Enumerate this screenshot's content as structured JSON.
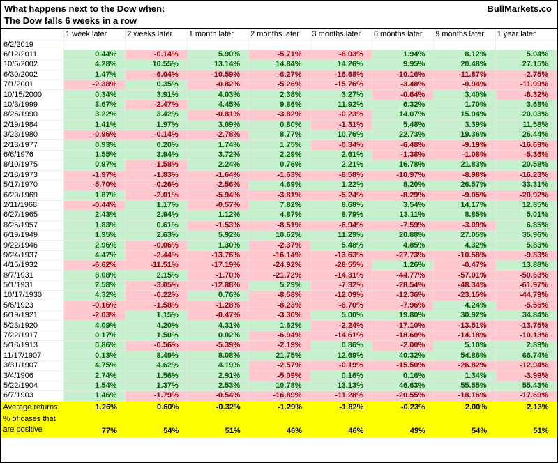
{
  "header": {
    "title_line1": "What happens next to the Dow when:",
    "title_line2": "The Dow falls 6 weeks in a row",
    "brand": "BullMarkets.co"
  },
  "colors": {
    "positive_bg": "#C6EFCE",
    "positive_text": "#006100",
    "negative_bg": "#FFC7CE",
    "negative_text": "#9C0006",
    "footer_bg": "#FFFF00"
  },
  "chart_data": {
    "type": "table",
    "title": "What happens next to the Dow when: The Dow falls 6 weeks in a row",
    "columns": [
      "1 week later",
      "2 weeks later",
      "1 month later",
      "2 months later",
      "3 months later",
      "6 months later",
      "9 months later",
      "1 year later"
    ],
    "rows": [
      {
        "date": "6/2/2019",
        "values": [
          "",
          "",
          "",
          "",
          "",
          "",
          "",
          ""
        ]
      },
      {
        "date": "6/12/2011",
        "values": [
          "0.44%",
          "-0.14%",
          "5.90%",
          "-5.71%",
          "-8.03%",
          "1.94%",
          "8.12%",
          "5.04%"
        ]
      },
      {
        "date": "10/6/2002",
        "values": [
          "4.28%",
          "10.55%",
          "13.14%",
          "14.84%",
          "14.26%",
          "9.95%",
          "20.48%",
          "27.15%"
        ]
      },
      {
        "date": "6/30/2002",
        "values": [
          "1.47%",
          "-6.04%",
          "-10.59%",
          "-6.27%",
          "-16.68%",
          "-10.16%",
          "-11.87%",
          "-2.75%"
        ]
      },
      {
        "date": "7/1/2001",
        "values": [
          "-2.38%",
          "0.35%",
          "-0.82%",
          "-5.26%",
          "-15.76%",
          "-3.48%",
          "-0.94%",
          "-11.99%"
        ]
      },
      {
        "date": "10/15/2000",
        "values": [
          "0.34%",
          "3.91%",
          "4.03%",
          "2.38%",
          "3.27%",
          "-0.64%",
          "3.40%",
          "-8.32%"
        ]
      },
      {
        "date": "10/3/1999",
        "values": [
          "3.67%",
          "-2.47%",
          "4.45%",
          "9.86%",
          "11.92%",
          "6.32%",
          "1.70%",
          "3.68%"
        ]
      },
      {
        "date": "8/26/1990",
        "values": [
          "3.22%",
          "3.42%",
          "-0.81%",
          "-3.82%",
          "-0.23%",
          "14.07%",
          "15.04%",
          "20.03%"
        ]
      },
      {
        "date": "2/19/1984",
        "values": [
          "1.41%",
          "1.97%",
          "3.09%",
          "0.80%",
          "-1.31%",
          "5.48%",
          "3.39%",
          "11.58%"
        ]
      },
      {
        "date": "3/23/1980",
        "values": [
          "-0.96%",
          "-0.14%",
          "-2.78%",
          "8.77%",
          "10.76%",
          "22.73%",
          "19.36%",
          "26.44%"
        ]
      },
      {
        "date": "2/13/1977",
        "values": [
          "0.93%",
          "0.20%",
          "1.74%",
          "1.75%",
          "-0.34%",
          "-6.48%",
          "-9.19%",
          "-16.69%"
        ]
      },
      {
        "date": "6/6/1976",
        "values": [
          "1.55%",
          "3.94%",
          "3.72%",
          "2.29%",
          "2.61%",
          "-1.38%",
          "-1.08%",
          "-5.36%"
        ]
      },
      {
        "date": "8/10/1975",
        "values": [
          "0.97%",
          "-1.58%",
          "2.24%",
          "0.76%",
          "2.21%",
          "16.78%",
          "21.83%",
          "20.58%"
        ]
      },
      {
        "date": "2/18/1973",
        "values": [
          "-1.97%",
          "-1.83%",
          "-1.64%",
          "-1.63%",
          "-8.58%",
          "-10.97%",
          "-8.98%",
          "-16.23%"
        ]
      },
      {
        "date": "5/17/1970",
        "values": [
          "-5.70%",
          "-0.26%",
          "-2.56%",
          "4.69%",
          "1.22%",
          "8.20%",
          "26.57%",
          "33.31%"
        ]
      },
      {
        "date": "6/29/1969",
        "values": [
          "1.87%",
          "-2.01%",
          "-5.94%",
          "-3.81%",
          "-5.24%",
          "-8.29%",
          "-9.05%",
          "-20.92%"
        ]
      },
      {
        "date": "2/11/1968",
        "values": [
          "-0.44%",
          "1.17%",
          "-0.57%",
          "7.82%",
          "8.68%",
          "3.54%",
          "14.17%",
          "12.85%"
        ]
      },
      {
        "date": "6/27/1965",
        "values": [
          "2.43%",
          "2.94%",
          "1.12%",
          "4.87%",
          "8.79%",
          "13.11%",
          "8.85%",
          "5.01%"
        ]
      },
      {
        "date": "8/25/1957",
        "values": [
          "1.83%",
          "0.61%",
          "-1.53%",
          "-8.51%",
          "-6.94%",
          "-7.59%",
          "-3.09%",
          "6.85%"
        ]
      },
      {
        "date": "6/19/1949",
        "values": [
          "1.95%",
          "2.63%",
          "5.92%",
          "10.62%",
          "11.29%",
          "20.88%",
          "27.05%",
          "35.96%"
        ]
      },
      {
        "date": "9/22/1946",
        "values": [
          "2.96%",
          "-0.06%",
          "1.30%",
          "-2.37%",
          "5.48%",
          "4.85%",
          "4.32%",
          "5.83%"
        ]
      },
      {
        "date": "9/24/1937",
        "values": [
          "4.47%",
          "-2.44%",
          "-13.76%",
          "-16.14%",
          "-13.63%",
          "-27.73%",
          "-10.58%",
          "-9.83%"
        ]
      },
      {
        "date": "4/15/1932",
        "values": [
          "-6.62%",
          "-11.51%",
          "-17.19%",
          "-24.92%",
          "-28.55%",
          "1.26%",
          "-0.47%",
          "13.88%"
        ]
      },
      {
        "date": "8/7/1931",
        "values": [
          "8.08%",
          "2.15%",
          "-1.70%",
          "-21.72%",
          "-14.31%",
          "-44.77%",
          "-57.01%",
          "-50.63%"
        ]
      },
      {
        "date": "5/1/1931",
        "values": [
          "2.58%",
          "-3.05%",
          "-12.88%",
          "5.29%",
          "-7.32%",
          "-28.54%",
          "-48.34%",
          "-61.97%"
        ]
      },
      {
        "date": "10/17/1930",
        "values": [
          "4.32%",
          "-0.22%",
          "0.76%",
          "-8.58%",
          "-12.09%",
          "-12.36%",
          "-23.15%",
          "-44.79%"
        ]
      },
      {
        "date": "5/6/1923",
        "values": [
          "-0.16%",
          "-1.58%",
          "-1.28%",
          "-8.23%",
          "-8.70%",
          "-7.96%",
          "4.24%",
          "-5.56%"
        ]
      },
      {
        "date": "6/19/1921",
        "values": [
          "-2.03%",
          "1.15%",
          "-0.47%",
          "-3.30%",
          "5.00%",
          "19.80%",
          "30.92%",
          "34.84%"
        ]
      },
      {
        "date": "5/23/1920",
        "values": [
          "4.09%",
          "4.20%",
          "4.31%",
          "1.62%",
          "-2.24%",
          "-17.10%",
          "-13.51%",
          "-13.75%"
        ]
      },
      {
        "date": "7/22/1917",
        "values": [
          "0.17%",
          "1.50%",
          "0.02%",
          "-6.94%",
          "-14.61%",
          "-18.60%",
          "-14.18%",
          "-10.13%"
        ]
      },
      {
        "date": "5/18/1913",
        "values": [
          "0.86%",
          "-0.56%",
          "-5.39%",
          "-2.19%",
          "0.86%",
          "-2.00%",
          "5.10%",
          "2.89%"
        ]
      },
      {
        "date": "11/17/1907",
        "values": [
          "0.13%",
          "8.49%",
          "8.08%",
          "21.75%",
          "12.69%",
          "40.32%",
          "54.86%",
          "66.74%"
        ]
      },
      {
        "date": "3/31/1907",
        "values": [
          "4.75%",
          "4.62%",
          "4.19%",
          "-2.57%",
          "-0.19%",
          "-15.50%",
          "-26.82%",
          "-12.94%"
        ]
      },
      {
        "date": "3/4/1906",
        "values": [
          "2.74%",
          "1.56%",
          "2.91%",
          "-5.09%",
          "0.16%",
          "0.16%",
          "1.34%",
          "-3.99%"
        ]
      },
      {
        "date": "5/22/1904",
        "values": [
          "1.54%",
          "1.37%",
          "2.53%",
          "10.78%",
          "13.13%",
          "46.63%",
          "55.55%",
          "55.43%"
        ]
      },
      {
        "date": "6/7/1903",
        "values": [
          "1.46%",
          "-1.79%",
          "-0.54%",
          "-16.89%",
          "-11.28%",
          "-20.55%",
          "-18.16%",
          "-17.69%"
        ]
      }
    ],
    "footer": {
      "average_label": "Average returns",
      "average_values": [
        "1.26%",
        "0.60%",
        "-0.32%",
        "-1.29%",
        "-1.82%",
        "-0.23%",
        "2.00%",
        "2.13%"
      ],
      "percent_label_line1": "% of cases that",
      "percent_label_line2": "are positive",
      "percent_values": [
        "77%",
        "54%",
        "51%",
        "46%",
        "46%",
        "49%",
        "54%",
        "51%"
      ]
    }
  }
}
